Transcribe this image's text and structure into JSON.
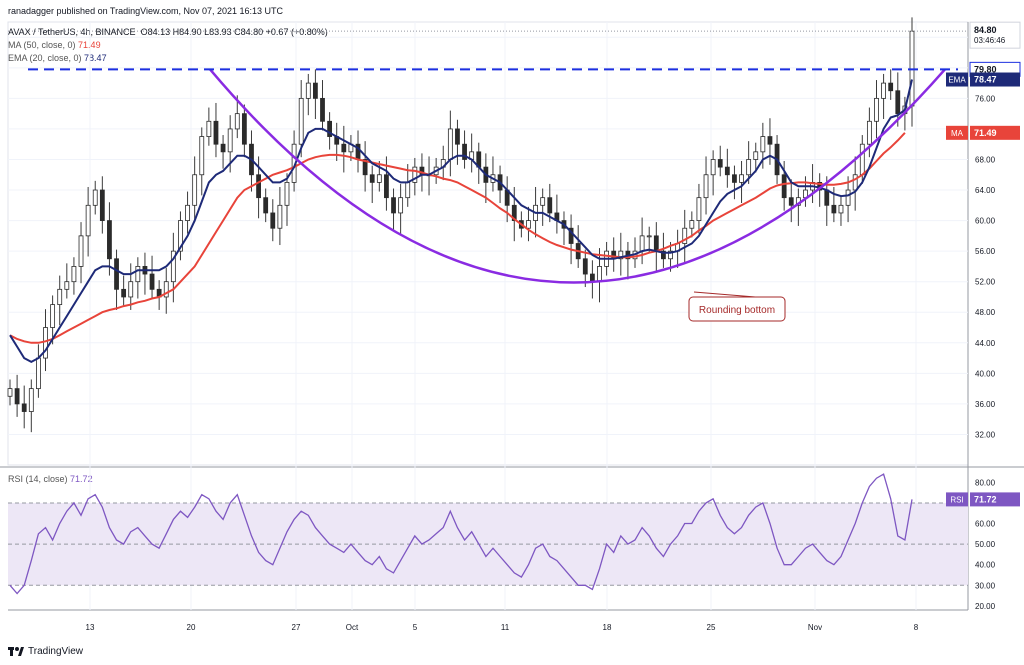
{
  "header": {
    "publisher": "ranadagger published on TradingView.com, Nov 07, 2021 16:13 UTC",
    "symbol_line": "AVAX / TetherUS, 4h, BINANCE",
    "ohlc": "O84.13 H84.90 L83.93 C84.80 +0.67 (+0.80%)",
    "ma_label": "MA (50, close, 0)",
    "ma_value": "71.49",
    "ema_label": "EMA (20, close, 0)",
    "ema_value": "78.47",
    "rsi_label": "RSI (14, close)",
    "rsi_value": "71.72"
  },
  "footer": {
    "brand": "TradingView"
  },
  "colors": {
    "up": "#26a69a",
    "down": "#ef5350",
    "candle": "#3a3a3a",
    "ema": "#1e2a78",
    "ma": "#e8443a",
    "curve": "#8a2be2",
    "resistance": "#1c2fe0",
    "rsi": "#7e57c2",
    "rsi_band": "#ede7f6"
  },
  "chart_data": [
    {
      "type": "candlestick",
      "currency": "USDT",
      "y_ticks": [
        "84.00",
        "80.00",
        "76.00",
        "72.00",
        "68.00",
        "64.00",
        "60.00",
        "56.00",
        "52.00",
        "48.00",
        "44.00",
        "40.00",
        "36.00",
        "32.00"
      ],
      "ylim": [
        28,
        86
      ],
      "x_ticks": [
        "13",
        "20",
        "27",
        "Oct",
        "5",
        "11",
        "18",
        "25",
        "Nov",
        "8"
      ],
      "price_labels": {
        "last": "84.80",
        "countdown": "03:46:46",
        "resistance": "79.80",
        "ema": "78.47",
        "ma": "71.49"
      },
      "tag_ema": "EMA",
      "tag_ma": "MA",
      "annotation": "Rounding bottom",
      "resistance_level": 79.8,
      "close": [
        38,
        36,
        35,
        38,
        42,
        46,
        49,
        51,
        52,
        54,
        58,
        62,
        64,
        60,
        55,
        51,
        50,
        52,
        54,
        53,
        51,
        50,
        52,
        56,
        60,
        62,
        66,
        71,
        73,
        70,
        69,
        72,
        74,
        70,
        66,
        63,
        61,
        59,
        62,
        65,
        70,
        76,
        78,
        76,
        73,
        71,
        70,
        69,
        70,
        68,
        66,
        65,
        66,
        63,
        61,
        63,
        65,
        67,
        66,
        66,
        67,
        68,
        72,
        70,
        68,
        69,
        67,
        65,
        66,
        64,
        62,
        60,
        59,
        60,
        62,
        63,
        61,
        60,
        59,
        57,
        55,
        53,
        52,
        54,
        56,
        55,
        56,
        55,
        56,
        58,
        58,
        56,
        55,
        56,
        57,
        59,
        60,
        63,
        66,
        68,
        67,
        66,
        65,
        66,
        68,
        69,
        71,
        70,
        66,
        63,
        62,
        63,
        64,
        65,
        64,
        62,
        61,
        62,
        64,
        66,
        70,
        73,
        76,
        78,
        77,
        74,
        75,
        84.8
      ],
      "ema20": [
        45,
        43.5,
        42,
        41.5,
        42,
        43,
        44.5,
        46,
        47.5,
        49,
        50.5,
        52,
        53.5,
        54,
        54,
        53.5,
        53,
        53,
        53.5,
        53.5,
        53.5,
        53.5,
        54,
        55,
        56.5,
        58,
        60,
        62.5,
        65,
        66,
        66.5,
        67.5,
        68.5,
        68.5,
        68,
        67,
        66,
        65,
        65,
        65.5,
        67,
        69.5,
        71.5,
        72,
        72,
        71.5,
        71,
        70.5,
        70,
        69.5,
        68.5,
        67.5,
        67,
        66.5,
        65.5,
        65,
        65,
        65.5,
        66,
        66,
        66.5,
        67,
        68,
        68.5,
        68.5,
        68,
        67,
        66,
        65.5,
        65,
        64,
        63,
        62,
        61.5,
        61,
        61,
        60.5,
        60,
        59.5,
        58.5,
        57.5,
        56.5,
        55.5,
        55,
        55,
        55,
        55.2,
        55.4,
        55.6,
        56,
        56.2,
        56,
        55.8,
        55.8,
        56,
        56.5,
        57,
        58,
        59.5,
        61,
        62.5,
        63.5,
        64,
        64.5,
        65.5,
        66.5,
        68,
        68.5,
        68,
        66.5,
        65,
        64.5,
        64.5,
        64.5,
        64.3,
        64,
        63.5,
        63.2,
        63.3,
        63.8,
        65,
        67,
        69.5,
        72,
        73.5,
        73.8,
        74.5,
        78.47
      ],
      "ma50": [
        45,
        44.5,
        44.2,
        44,
        44,
        44.2,
        44.5,
        45,
        45.5,
        46,
        46.5,
        47,
        47.5,
        48,
        48.3,
        48.5,
        48.8,
        49,
        49.3,
        49.5,
        49.8,
        50,
        50.5,
        51,
        52,
        53,
        54,
        55.5,
        57,
        58.5,
        60,
        61.5,
        63,
        64,
        64.5,
        65,
        65.5,
        66,
        66.3,
        66.6,
        67,
        67.5,
        68,
        68.3,
        68.5,
        68.6,
        68.6,
        68.5,
        68.3,
        68,
        67.8,
        67.6,
        67.4,
        67.2,
        67,
        66.8,
        66.6,
        66.5,
        66.3,
        66,
        65.8,
        65.5,
        65.3,
        65,
        64.5,
        64,
        63.5,
        63,
        62.3,
        61.6,
        61,
        60.2,
        59.5,
        58.8,
        58.2,
        57.7,
        57.2,
        56.8,
        56.5,
        56.2,
        56,
        55.8,
        55.6,
        55.5,
        55.4,
        55.3,
        55.2,
        55.2,
        55.3,
        55.5,
        55.8,
        56,
        56.3,
        56.7,
        57,
        57.5,
        58,
        58.7,
        59.3,
        60,
        60.5,
        61,
        61.5,
        62,
        62.5,
        63,
        63.6,
        64.2,
        64.6,
        64.8,
        64.9,
        65,
        65,
        64.9,
        64.8,
        64.7,
        64.7,
        64.8,
        65,
        65.4,
        66,
        66.8,
        67.8,
        68.8,
        69.6,
        70.5,
        71.49
      ]
    },
    {
      "type": "line",
      "name": "RSI (14, close)",
      "y_ticks": [
        "80.00",
        "70.00",
        "60.00",
        "50.00",
        "40.00",
        "30.00",
        "20.00"
      ],
      "ylim": [
        18,
        86
      ],
      "band": [
        30,
        70
      ],
      "last": "71.72",
      "tag": "RSI",
      "values": [
        30,
        26,
        30,
        42,
        55,
        58,
        52,
        60,
        66,
        70,
        64,
        72,
        74,
        68,
        58,
        52,
        50,
        56,
        58,
        54,
        50,
        48,
        55,
        62,
        66,
        63,
        68,
        74,
        72,
        66,
        62,
        70,
        74,
        64,
        54,
        46,
        42,
        40,
        48,
        56,
        62,
        66,
        64,
        58,
        54,
        50,
        48,
        46,
        50,
        46,
        42,
        40,
        44,
        38,
        36,
        42,
        48,
        54,
        50,
        52,
        55,
        58,
        66,
        58,
        52,
        56,
        50,
        44,
        48,
        44,
        40,
        36,
        34,
        40,
        48,
        50,
        44,
        42,
        38,
        34,
        30,
        30,
        28,
        38,
        50,
        46,
        54,
        50,
        52,
        58,
        54,
        48,
        44,
        50,
        54,
        60,
        60,
        66,
        70,
        72,
        64,
        58,
        55,
        58,
        64,
        68,
        70,
        60,
        48,
        40,
        40,
        44,
        48,
        50,
        46,
        42,
        40,
        44,
        52,
        60,
        70,
        78,
        82,
        84,
        72,
        54,
        52,
        71.72
      ]
    }
  ]
}
